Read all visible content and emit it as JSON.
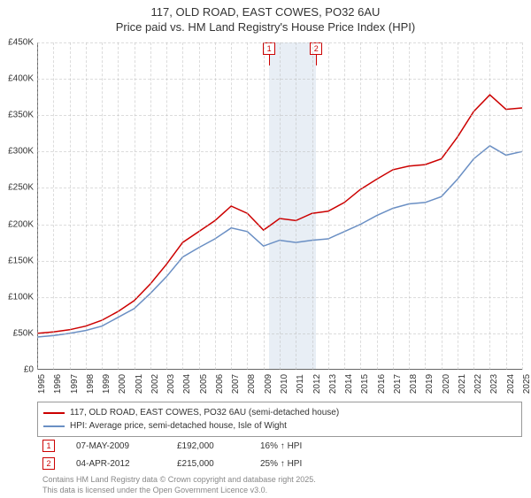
{
  "title_line1": "117, OLD ROAD, EAST COWES, PO32 6AU",
  "title_line2": "Price paid vs. HM Land Registry's House Price Index (HPI)",
  "chart": {
    "type": "line",
    "background_color": "#ffffff",
    "grid_color": "#cccccc",
    "x_years": [
      1995,
      1996,
      1997,
      1998,
      1999,
      2000,
      2001,
      2002,
      2003,
      2004,
      2005,
      2006,
      2007,
      2008,
      2009,
      2010,
      2011,
      2012,
      2013,
      2014,
      2015,
      2016,
      2017,
      2018,
      2019,
      2020,
      2021,
      2022,
      2023,
      2024,
      2025
    ],
    "ylim": [
      0,
      450000
    ],
    "ytick_step": 50000,
    "ytick_labels": [
      "£0",
      "£50K",
      "£100K",
      "£150K",
      "£200K",
      "£250K",
      "£300K",
      "£350K",
      "£400K",
      "£450K"
    ],
    "shaded_band": {
      "start_year": 2009.35,
      "end_year": 2012.26,
      "color": "#e8eef5"
    },
    "series": [
      {
        "name": "117, OLD ROAD, EAST COWES, PO32 6AU (semi-detached house)",
        "color": "#cc0000",
        "line_width": 1.5,
        "points": [
          [
            1995,
            50000
          ],
          [
            1996,
            52000
          ],
          [
            1997,
            55000
          ],
          [
            1998,
            60000
          ],
          [
            1999,
            68000
          ],
          [
            2000,
            80000
          ],
          [
            2001,
            95000
          ],
          [
            2002,
            118000
          ],
          [
            2003,
            145000
          ],
          [
            2004,
            175000
          ],
          [
            2005,
            190000
          ],
          [
            2006,
            205000
          ],
          [
            2007,
            225000
          ],
          [
            2008,
            215000
          ],
          [
            2009,
            192000
          ],
          [
            2009.5,
            200000
          ],
          [
            2010,
            208000
          ],
          [
            2011,
            205000
          ],
          [
            2012,
            215000
          ],
          [
            2013,
            218000
          ],
          [
            2014,
            230000
          ],
          [
            2015,
            248000
          ],
          [
            2016,
            262000
          ],
          [
            2017,
            275000
          ],
          [
            2018,
            280000
          ],
          [
            2019,
            282000
          ],
          [
            2020,
            290000
          ],
          [
            2021,
            320000
          ],
          [
            2022,
            355000
          ],
          [
            2023,
            378000
          ],
          [
            2024,
            358000
          ],
          [
            2025,
            360000
          ]
        ]
      },
      {
        "name": "HPI: Average price, semi-detached house, Isle of Wight",
        "color": "#6a8fc4",
        "line_width": 1.5,
        "points": [
          [
            1995,
            45000
          ],
          [
            1996,
            47000
          ],
          [
            1997,
            50000
          ],
          [
            1998,
            54000
          ],
          [
            1999,
            60000
          ],
          [
            2000,
            72000
          ],
          [
            2001,
            84000
          ],
          [
            2002,
            105000
          ],
          [
            2003,
            128000
          ],
          [
            2004,
            155000
          ],
          [
            2005,
            168000
          ],
          [
            2006,
            180000
          ],
          [
            2007,
            195000
          ],
          [
            2008,
            190000
          ],
          [
            2009,
            170000
          ],
          [
            2010,
            178000
          ],
          [
            2011,
            175000
          ],
          [
            2012,
            178000
          ],
          [
            2013,
            180000
          ],
          [
            2014,
            190000
          ],
          [
            2015,
            200000
          ],
          [
            2016,
            212000
          ],
          [
            2017,
            222000
          ],
          [
            2018,
            228000
          ],
          [
            2019,
            230000
          ],
          [
            2020,
            238000
          ],
          [
            2021,
            262000
          ],
          [
            2022,
            290000
          ],
          [
            2023,
            308000
          ],
          [
            2024,
            295000
          ],
          [
            2025,
            300000
          ]
        ]
      }
    ],
    "markers": [
      {
        "id": "1",
        "year": 2009.35
      },
      {
        "id": "2",
        "year": 2012.26
      }
    ]
  },
  "legend": {
    "series0": "117, OLD ROAD, EAST COWES, PO32 6AU (semi-detached house)",
    "series1": "HPI: Average price, semi-detached house, Isle of Wight"
  },
  "transactions": [
    {
      "id": "1",
      "date": "07-MAY-2009",
      "price": "£192,000",
      "delta": "16% ↑ HPI"
    },
    {
      "id": "2",
      "date": "04-APR-2012",
      "price": "£215,000",
      "delta": "25% ↑ HPI"
    }
  ],
  "footer_line1": "Contains HM Land Registry data © Crown copyright and database right 2025.",
  "footer_line2": "This data is licensed under the Open Government Licence v3.0."
}
